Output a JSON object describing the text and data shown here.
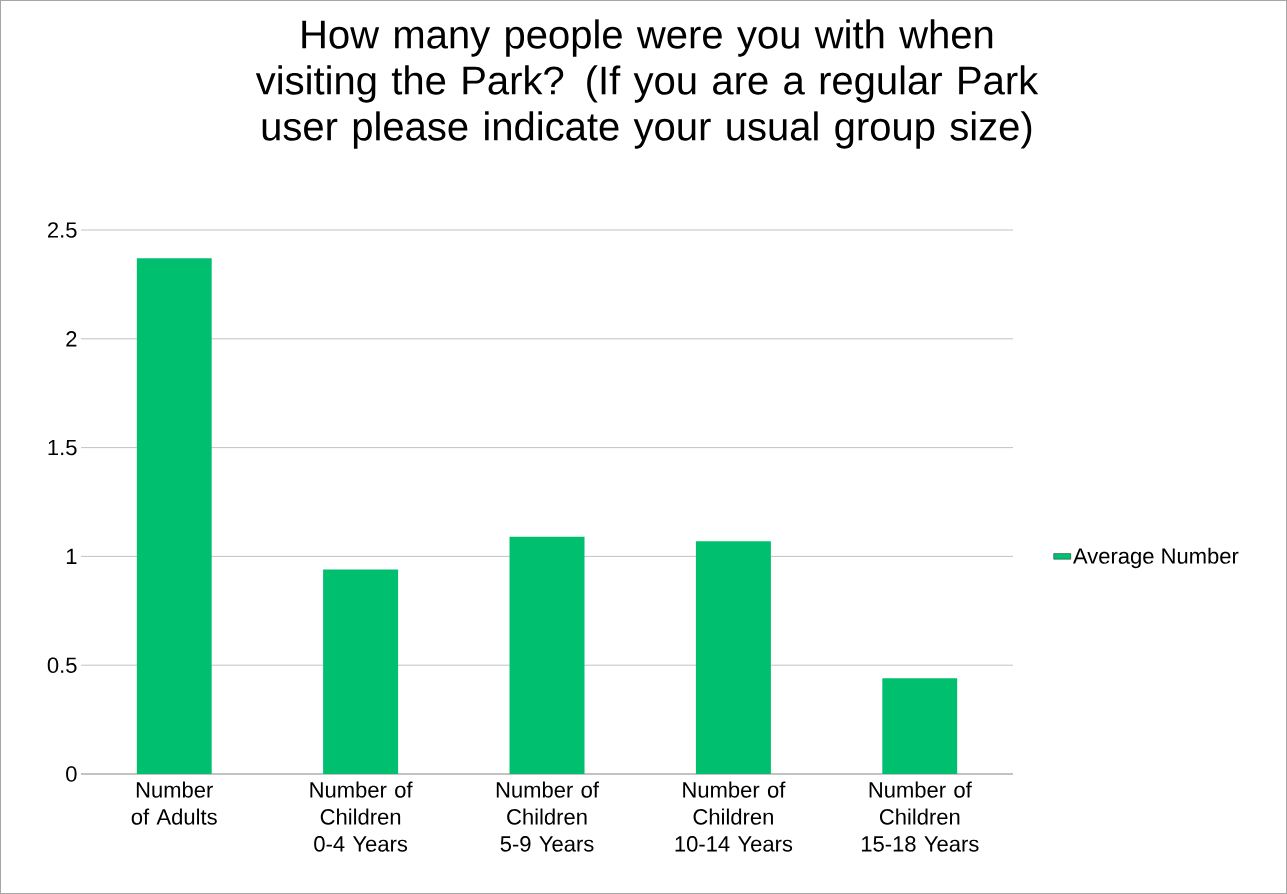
{
  "chart_data": {
    "type": "bar",
    "title": "How many people were you with when visiting the Park? (If you are a regular Park user please indicate your usual group size)",
    "categories": [
      "Number of Adults",
      "Number of Children 0-4 Years",
      "Number of Children 5-9 Years",
      "Number of Children 10-14 Years",
      "Number of Children 15-18 Years"
    ],
    "series": [
      {
        "name": "Average Number",
        "color": "#00c070",
        "values": [
          2.37,
          0.94,
          1.09,
          1.07,
          0.44
        ]
      }
    ],
    "ylim": [
      0,
      2.5
    ],
    "yticks": [
      0,
      0.5,
      1,
      1.5,
      2,
      2.5
    ],
    "grid": "y",
    "legend": "right"
  }
}
